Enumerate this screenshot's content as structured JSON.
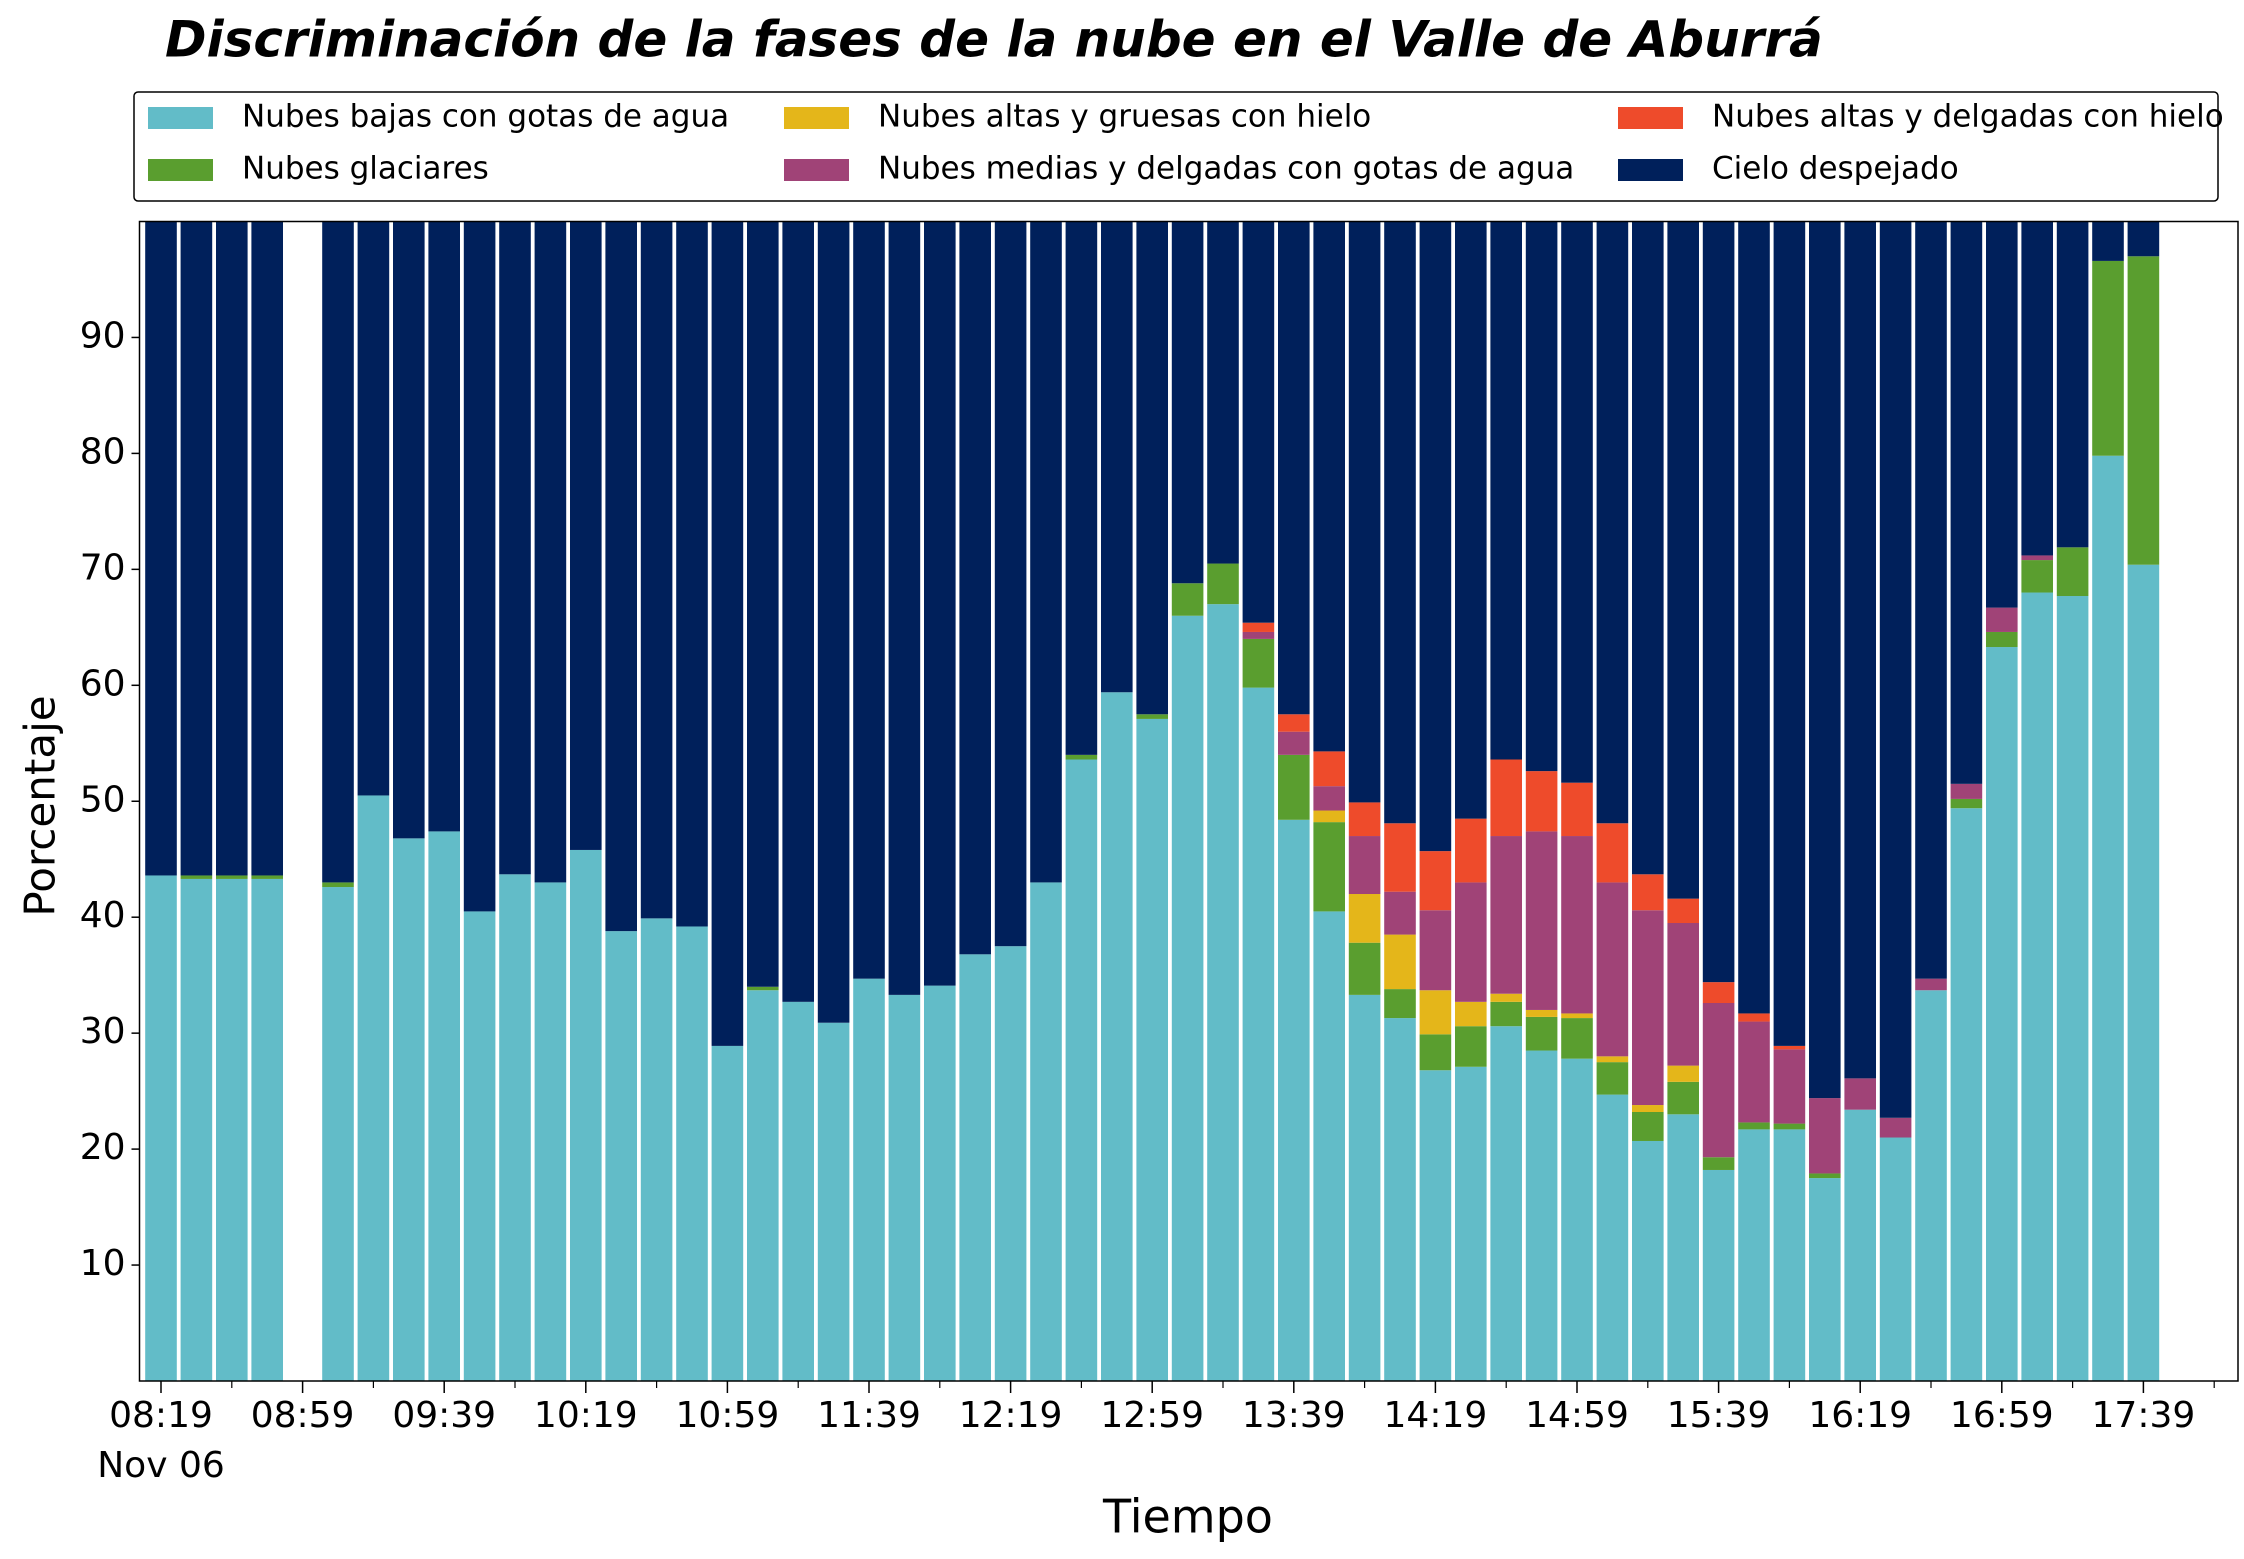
{
  "chart_data": {
    "type": "stacked_bar",
    "title": "Discriminación de la fases de la nube en el Valle de Aburrá",
    "xlabel": "Tiempo",
    "ylabel": "Porcentaje",
    "date_label": "Nov 06",
    "categories": [
      "08:19",
      null,
      null,
      null,
      "08:59",
      null,
      null,
      null,
      "09:39",
      null,
      null,
      null,
      "10:19",
      null,
      null,
      null,
      "10:59",
      null,
      null,
      null,
      "11:39",
      null,
      null,
      null,
      "12:19",
      null,
      null,
      null,
      "12:59",
      null,
      null,
      null,
      "13:39",
      null,
      null,
      null,
      "14:19",
      null,
      null,
      null,
      "14:59",
      null,
      null,
      null,
      "15:39",
      null,
      null,
      null,
      "16:19",
      null,
      null,
      null,
      "16:59",
      null,
      null,
      null,
      "17:39"
    ],
    "series": [
      {
        "name": "Nubes bajas con gotas de agua",
        "color": "#62bcc8",
        "values": [
          43.6,
          43.3,
          43.3,
          43.3,
          null,
          42.6,
          50.5,
          46.8,
          47.4,
          40.5,
          43.7,
          43.0,
          45.8,
          38.8,
          39.9,
          39.2,
          28.9,
          33.7,
          32.7,
          30.9,
          34.7,
          33.3,
          34.1,
          36.8,
          37.5,
          43.0,
          53.6,
          59.4,
          57.1,
          66.0,
          67.0,
          59.8,
          48.4,
          40.5,
          33.3,
          31.3,
          26.8,
          27.1,
          30.6,
          28.5,
          27.8,
          24.7,
          20.7,
          23.0,
          18.2,
          21.7,
          21.7,
          17.5,
          23.4,
          21.0,
          33.7,
          49.4,
          63.3,
          68.0,
          67.7,
          79.8,
          70.4
        ]
      },
      {
        "name": "Nubes glaciares",
        "color": "#5a9e2f",
        "values": [
          0,
          0.3,
          0.3,
          0.3,
          null,
          0.4,
          0,
          0,
          0,
          0,
          0,
          0,
          0,
          0,
          0,
          0,
          0,
          0.3,
          0,
          0,
          0,
          0,
          0,
          0,
          0,
          0,
          0.4,
          0,
          0.4,
          2.8,
          3.5,
          4.2,
          5.6,
          7.7,
          4.5,
          2.5,
          3.1,
          3.5,
          2.1,
          2.9,
          3.5,
          2.8,
          2.5,
          2.8,
          1.1,
          0.6,
          0.5,
          0.4,
          0,
          0,
          0,
          0.8,
          1.3,
          2.8,
          4.2,
          16.8,
          26.6
        ]
      },
      {
        "name": "Nubes altas y gruesas con hielo",
        "color": "#e4b61a",
        "values": [
          0,
          0,
          0,
          0,
          null,
          0,
          0,
          0,
          0,
          0,
          0,
          0,
          0,
          0,
          0,
          0,
          0,
          0,
          0,
          0,
          0,
          0,
          0,
          0,
          0,
          0,
          0,
          0,
          0,
          0,
          0,
          0,
          0,
          1.0,
          4.2,
          4.7,
          3.8,
          2.1,
          0.7,
          0.6,
          0.4,
          0.5,
          0.6,
          1.4,
          0,
          0,
          0,
          0,
          0,
          0,
          0,
          0,
          0,
          0,
          0,
          0,
          0
        ]
      },
      {
        "name": "Nubes medias y delgadas con gotas de agua",
        "color": "#a04377",
        "values": [
          0,
          0,
          0,
          0,
          null,
          0,
          0,
          0,
          0,
          0,
          0,
          0,
          0,
          0,
          0,
          0,
          0,
          0,
          0,
          0,
          0,
          0,
          0,
          0,
          0,
          0,
          0,
          0,
          0,
          0,
          0,
          0.6,
          2.0,
          2.1,
          5.0,
          3.7,
          6.9,
          10.3,
          13.6,
          15.4,
          15.3,
          15.0,
          16.8,
          12.3,
          13.3,
          8.7,
          6.4,
          6.5,
          2.7,
          1.7,
          1.0,
          1.3,
          2.1,
          0.4,
          0,
          0,
          0
        ]
      },
      {
        "name": "Nubes altas y delgadas con hielo",
        "color": "#ee4b2b",
        "values": [
          0,
          0,
          0,
          0,
          null,
          0,
          0,
          0,
          0,
          0,
          0,
          0,
          0,
          0,
          0,
          0,
          0,
          0,
          0,
          0,
          0,
          0,
          0,
          0,
          0,
          0,
          0,
          0,
          0,
          0,
          0,
          0.8,
          1.5,
          3.0,
          2.9,
          5.9,
          5.1,
          5.5,
          6.6,
          5.2,
          4.6,
          5.1,
          3.1,
          2.1,
          1.8,
          0.7,
          0.3,
          0,
          0,
          0,
          0,
          0,
          0,
          0,
          0,
          0,
          0
        ]
      },
      {
        "name": "Cielo despejado",
        "color": "#00205b",
        "values": [
          56.4,
          56.4,
          56.4,
          56.4,
          null,
          57.0,
          49.5,
          53.2,
          52.6,
          59.5,
          56.3,
          57.0,
          54.2,
          61.2,
          60.1,
          60.8,
          71.1,
          66.0,
          67.3,
          69.1,
          65.3,
          66.7,
          65.9,
          63.2,
          62.5,
          57.0,
          46.0,
          40.6,
          42.5,
          31.2,
          29.5,
          34.6,
          42.5,
          45.7,
          50.1,
          51.9,
          54.3,
          51.5,
          46.4,
          47.4,
          48.4,
          51.9,
          56.3,
          58.4,
          65.6,
          68.3,
          71.1,
          75.6,
          73.9,
          77.3,
          65.3,
          48.5,
          33.3,
          28.8,
          28.1,
          3.4,
          3.0
        ]
      }
    ],
    "ylim": [
      0,
      100
    ],
    "yticks": [
      10,
      20,
      30,
      40,
      50,
      60,
      70,
      80,
      90
    ],
    "grid": false,
    "legend": "top"
  }
}
